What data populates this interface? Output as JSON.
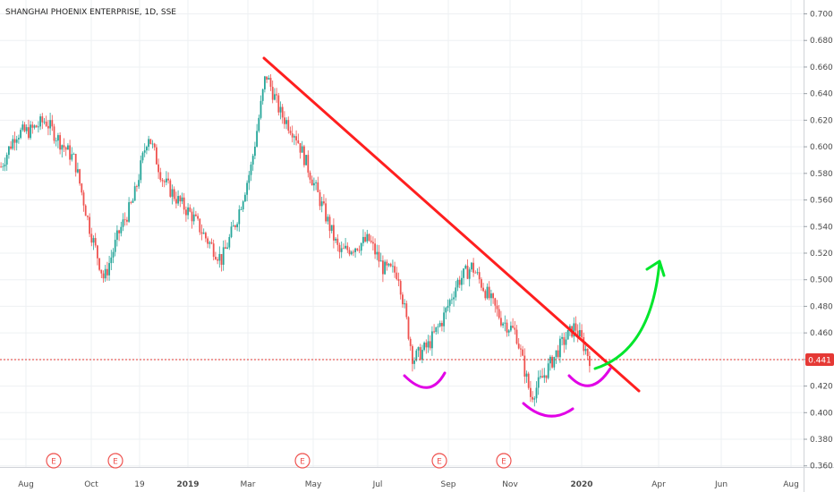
{
  "chart_data": {
    "type": "candlestick",
    "title": "SHANGHAI PHOENIX ENTERPRISE, 1D, SSE",
    "ylim": [
      0.36,
      0.7
    ],
    "y_ticks": [
      "0.360",
      "0.380",
      "0.400",
      "0.420",
      "0.440",
      "0.460",
      "0.480",
      "0.500",
      "0.520",
      "0.540",
      "0.560",
      "0.580",
      "0.600",
      "0.620",
      "0.640",
      "0.660",
      "0.680",
      "0.700"
    ],
    "x_ticks": [
      "Aug",
      "Oct",
      "19",
      "2019",
      "Mar",
      "May",
      "Jul",
      "Sep",
      "Nov",
      "2020",
      "Apr",
      "Jun",
      "Aug"
    ],
    "last_price": "0.441",
    "colors": {
      "up": "#26a69a",
      "down": "#ef5350",
      "trendline": "#ff1f1f",
      "neckline_arcs": "#e100e6",
      "arrow": "#00e62c",
      "price_line": "#e53935"
    },
    "earnings_marker_label": "E",
    "earnings_markers_at": [
      "Sep 2018",
      "Nov 2018",
      "Apr 2019",
      "Aug 2019",
      "Oct 2019"
    ],
    "close_series": [
      {
        "x": "Jul 2018",
        "y": 0.585
      },
      {
        "x": "Jul 2018",
        "y": 0.61
      },
      {
        "x": "Aug 2018",
        "y": 0.612
      },
      {
        "x": "Aug 2018",
        "y": 0.62
      },
      {
        "x": "Aug 2018",
        "y": 0.604
      },
      {
        "x": "Sep 2018",
        "y": 0.59
      },
      {
        "x": "Sep 2018",
        "y": 0.54
      },
      {
        "x": "Sep 2018",
        "y": 0.5
      },
      {
        "x": "Oct 2018",
        "y": 0.535
      },
      {
        "x": "Oct 2018",
        "y": 0.56
      },
      {
        "x": "Oct 2018",
        "y": 0.61
      },
      {
        "x": "Nov 2018",
        "y": 0.575
      },
      {
        "x": "Nov 2018",
        "y": 0.56
      },
      {
        "x": "Dec 2018",
        "y": 0.548
      },
      {
        "x": "Dec 2018",
        "y": 0.53
      },
      {
        "x": "Jan 2019",
        "y": 0.515
      },
      {
        "x": "Feb 2019",
        "y": 0.545
      },
      {
        "x": "Feb 2019",
        "y": 0.585
      },
      {
        "x": "Mar 2019",
        "y": 0.655
      },
      {
        "x": "Mar 2019",
        "y": 0.625
      },
      {
        "x": "Apr 2019",
        "y": 0.61
      },
      {
        "x": "Apr 2019",
        "y": 0.58
      },
      {
        "x": "May 2019",
        "y": 0.55
      },
      {
        "x": "May 2019",
        "y": 0.52
      },
      {
        "x": "Jun 2019",
        "y": 0.525
      },
      {
        "x": "Jun 2019",
        "y": 0.53
      },
      {
        "x": "Jul 2019",
        "y": 0.508
      },
      {
        "x": "Jul 2019",
        "y": 0.505
      },
      {
        "x": "Aug 2019",
        "y": 0.44
      },
      {
        "x": "Aug 2019",
        "y": 0.45
      },
      {
        "x": "Aug 2019",
        "y": 0.47
      },
      {
        "x": "Sep 2019",
        "y": 0.498
      },
      {
        "x": "Sep 2019",
        "y": 0.51
      },
      {
        "x": "Oct 2019",
        "y": 0.49
      },
      {
        "x": "Oct 2019",
        "y": 0.47
      },
      {
        "x": "Nov 2019",
        "y": 0.46
      },
      {
        "x": "Nov 2019",
        "y": 0.412
      },
      {
        "x": "Dec 2019",
        "y": 0.43
      },
      {
        "x": "Dec 2019",
        "y": 0.45
      },
      {
        "x": "Jan 2020",
        "y": 0.465
      },
      {
        "x": "Jan 2020",
        "y": 0.441
      }
    ]
  }
}
